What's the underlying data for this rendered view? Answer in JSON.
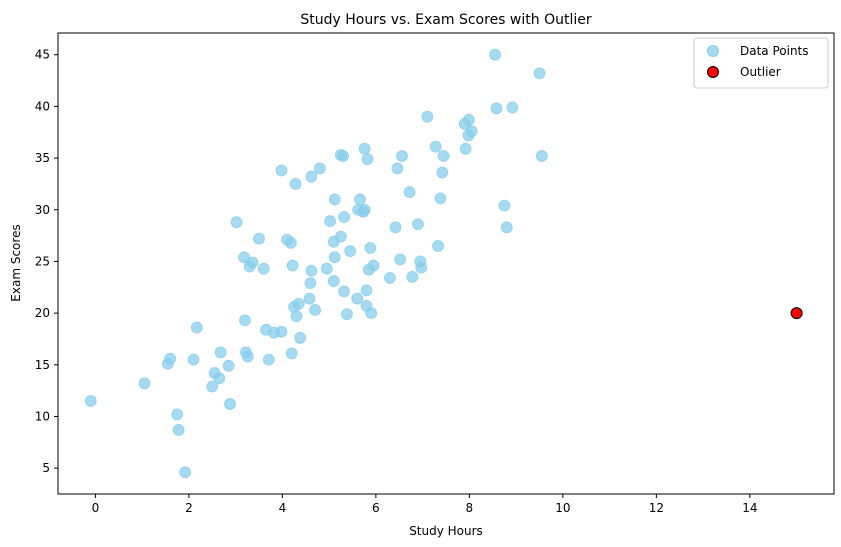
{
  "chart_data": {
    "type": "scatter",
    "title": "Study Hours vs. Exam Scores with Outlier",
    "xlabel": "Study Hours",
    "ylabel": "Exam Scores",
    "xlim": [
      -0.8,
      15.8
    ],
    "ylim": [
      2.5,
      47.1
    ],
    "xticks": [
      0,
      2,
      4,
      6,
      8,
      10,
      12,
      14
    ],
    "yticks": [
      5,
      10,
      15,
      20,
      25,
      30,
      35,
      40,
      45
    ],
    "grid": false,
    "legend_position": "top-right",
    "series": [
      {
        "name": "Data Points",
        "color": "#87ceeb",
        "points": [
          [
            -0.1,
            11.5
          ],
          [
            1.05,
            13.2
          ],
          [
            1.55,
            15.1
          ],
          [
            1.6,
            15.6
          ],
          [
            1.75,
            10.2
          ],
          [
            1.78,
            8.7
          ],
          [
            1.92,
            4.6
          ],
          [
            2.1,
            15.5
          ],
          [
            2.17,
            18.6
          ],
          [
            2.5,
            12.9
          ],
          [
            2.55,
            14.2
          ],
          [
            2.65,
            13.7
          ],
          [
            2.68,
            16.2
          ],
          [
            2.85,
            14.9
          ],
          [
            2.88,
            11.2
          ],
          [
            3.02,
            28.8
          ],
          [
            3.18,
            25.4
          ],
          [
            3.2,
            19.3
          ],
          [
            3.22,
            16.2
          ],
          [
            3.26,
            15.8
          ],
          [
            3.3,
            24.5
          ],
          [
            3.36,
            24.9
          ],
          [
            3.5,
            27.2
          ],
          [
            3.6,
            24.3
          ],
          [
            3.65,
            18.4
          ],
          [
            3.71,
            15.5
          ],
          [
            3.82,
            18.1
          ],
          [
            3.98,
            18.2
          ],
          [
            3.98,
            33.8
          ],
          [
            4.1,
            27.1
          ],
          [
            4.18,
            26.8
          ],
          [
            4.2,
            16.1
          ],
          [
            4.22,
            24.6
          ],
          [
            4.25,
            20.6
          ],
          [
            4.3,
            19.7
          ],
          [
            4.28,
            32.5
          ],
          [
            4.35,
            20.9
          ],
          [
            4.38,
            17.6
          ],
          [
            4.58,
            21.4
          ],
          [
            4.6,
            22.9
          ],
          [
            4.62,
            24.1
          ],
          [
            4.62,
            33.2
          ],
          [
            4.7,
            20.3
          ],
          [
            4.8,
            34.0
          ],
          [
            4.95,
            24.3
          ],
          [
            5.02,
            28.9
          ],
          [
            5.1,
            23.1
          ],
          [
            5.1,
            26.9
          ],
          [
            5.12,
            25.4
          ],
          [
            5.12,
            31.0
          ],
          [
            5.25,
            27.4
          ],
          [
            5.25,
            35.3
          ],
          [
            5.3,
            35.2
          ],
          [
            5.32,
            29.3
          ],
          [
            5.32,
            22.1
          ],
          [
            5.38,
            19.9
          ],
          [
            5.45,
            26.0
          ],
          [
            5.6,
            21.4
          ],
          [
            5.62,
            30.0
          ],
          [
            5.66,
            31.0
          ],
          [
            5.73,
            29.8
          ],
          [
            5.76,
            30.0
          ],
          [
            5.76,
            35.9
          ],
          [
            5.8,
            22.2
          ],
          [
            5.8,
            20.7
          ],
          [
            5.82,
            34.9
          ],
          [
            5.85,
            24.2
          ],
          [
            5.88,
            26.3
          ],
          [
            5.9,
            20.0
          ],
          [
            5.95,
            24.6
          ],
          [
            6.3,
            23.4
          ],
          [
            6.42,
            28.3
          ],
          [
            6.46,
            34.0
          ],
          [
            6.52,
            25.2
          ],
          [
            6.56,
            35.2
          ],
          [
            6.72,
            31.7
          ],
          [
            6.78,
            23.5
          ],
          [
            6.9,
            28.6
          ],
          [
            6.95,
            25.0
          ],
          [
            6.97,
            24.4
          ],
          [
            7.1,
            39.0
          ],
          [
            7.28,
            36.1
          ],
          [
            7.33,
            26.5
          ],
          [
            7.38,
            31.1
          ],
          [
            7.42,
            33.6
          ],
          [
            7.45,
            35.2
          ],
          [
            7.9,
            38.3
          ],
          [
            7.92,
            35.9
          ],
          [
            7.98,
            37.2
          ],
          [
            7.99,
            38.7
          ],
          [
            8.05,
            37.6
          ],
          [
            8.55,
            45.0
          ],
          [
            8.58,
            39.8
          ],
          [
            8.75,
            30.4
          ],
          [
            8.8,
            28.3
          ],
          [
            8.92,
            39.9
          ],
          [
            9.5,
            43.2
          ],
          [
            9.55,
            35.2
          ]
        ]
      },
      {
        "name": "Outlier",
        "color": "#ff0000",
        "points": [
          [
            15,
            20
          ]
        ]
      }
    ]
  }
}
